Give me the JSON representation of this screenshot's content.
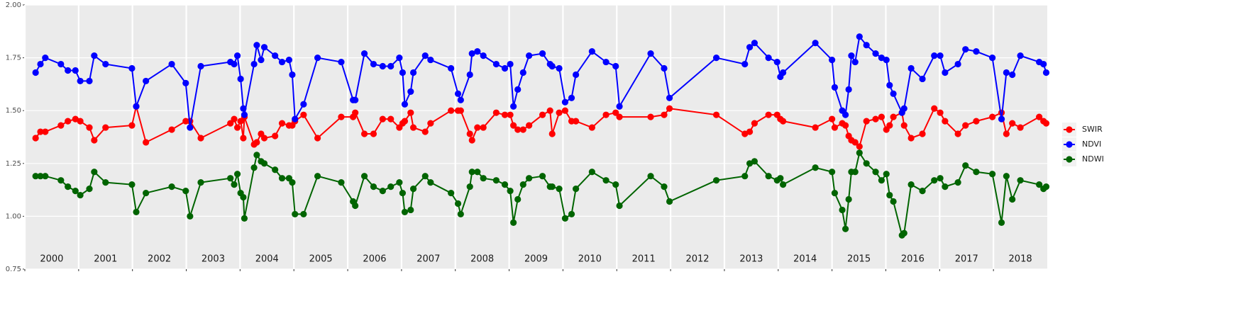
{
  "chart_data": {
    "type": "line",
    "x": [
      2000.2,
      2000.29,
      2000.38,
      2000.67,
      2000.8,
      2000.94,
      2001.03,
      2001.2,
      2001.29,
      2001.5,
      2001.99,
      2002.07,
      2002.25,
      2002.73,
      2002.99,
      2003.07,
      2003.27,
      2003.82,
      2003.89,
      2003.95,
      2004.01,
      2004.06,
      2004.08,
      2004.26,
      2004.31,
      2004.39,
      2004.45,
      2004.65,
      2004.78,
      2004.91,
      2004.97,
      2005.02,
      2005.18,
      2005.44,
      2005.88,
      2006.1,
      2006.14,
      2006.31,
      2006.48,
      2006.65,
      2006.8,
      2006.96,
      2007.02,
      2007.06,
      2007.17,
      2007.22,
      2007.44,
      2007.54,
      2007.92,
      2008.05,
      2008.1,
      2008.27,
      2008.31,
      2008.41,
      2008.52,
      2008.76,
      2008.92,
      2009.02,
      2009.08,
      2009.16,
      2009.26,
      2009.37,
      2009.62,
      2009.76,
      2009.8,
      2009.93,
      2010.04,
      2010.16,
      2010.24,
      2010.54,
      2010.8,
      2010.98,
      2011.05,
      2011.63,
      2011.88,
      2011.98,
      2012.85,
      2013.38,
      2013.47,
      2013.56,
      2013.82,
      2013.98,
      2014.04,
      2014.09,
      2014.69,
      2015.0,
      2015.05,
      2015.19,
      2015.25,
      2015.31,
      2015.36,
      2015.43,
      2015.51,
      2015.64,
      2015.81,
      2015.92,
      2016.01,
      2016.07,
      2016.14,
      2016.3,
      2016.34,
      2016.47,
      2016.68,
      2016.9,
      2017.01,
      2017.1,
      2017.34,
      2017.48,
      2017.68,
      2017.98,
      2018.15,
      2018.24,
      2018.35,
      2018.5,
      2018.85,
      2018.93,
      2018.98
    ],
    "series": [
      {
        "name": "SWIR",
        "color": "#ff0000",
        "values": [
          1.37,
          1.4,
          1.4,
          1.43,
          1.45,
          1.46,
          1.45,
          1.42,
          1.36,
          1.42,
          1.43,
          1.52,
          1.35,
          1.41,
          1.45,
          1.45,
          1.37,
          1.44,
          1.46,
          1.42,
          1.45,
          1.37,
          1.47,
          1.34,
          1.35,
          1.39,
          1.37,
          1.38,
          1.44,
          1.43,
          1.43,
          1.45,
          1.48,
          1.37,
          1.47,
          1.47,
          1.49,
          1.39,
          1.39,
          1.46,
          1.46,
          1.42,
          1.44,
          1.45,
          1.49,
          1.42,
          1.4,
          1.44,
          1.5,
          1.5,
          1.5,
          1.39,
          1.36,
          1.42,
          1.42,
          1.49,
          1.48,
          1.48,
          1.43,
          1.41,
          1.41,
          1.43,
          1.48,
          1.5,
          1.39,
          1.49,
          1.5,
          1.45,
          1.45,
          1.42,
          1.48,
          1.49,
          1.47,
          1.47,
          1.48,
          1.51,
          1.48,
          1.39,
          1.4,
          1.44,
          1.48,
          1.48,
          1.46,
          1.45,
          1.42,
          1.46,
          1.42,
          1.44,
          1.43,
          1.38,
          1.36,
          1.35,
          1.33,
          1.45,
          1.46,
          1.47,
          1.41,
          1.43,
          1.47,
          1.49,
          1.43,
          1.37,
          1.39,
          1.51,
          1.49,
          1.45,
          1.39,
          1.43,
          1.45,
          1.47,
          1.49,
          1.39,
          1.44,
          1.42,
          1.47,
          1.45,
          1.44
        ]
      },
      {
        "name": "NDVI",
        "color": "#0000ff",
        "values": [
          1.68,
          1.72,
          1.75,
          1.72,
          1.69,
          1.69,
          1.64,
          1.64,
          1.76,
          1.72,
          1.7,
          1.52,
          1.64,
          1.72,
          1.63,
          1.42,
          1.71,
          1.73,
          1.72,
          1.76,
          1.65,
          1.51,
          1.48,
          1.72,
          1.81,
          1.74,
          1.8,
          1.76,
          1.73,
          1.74,
          1.67,
          1.46,
          1.53,
          1.75,
          1.73,
          1.55,
          1.55,
          1.77,
          1.72,
          1.71,
          1.71,
          1.75,
          1.68,
          1.53,
          1.59,
          1.68,
          1.76,
          1.74,
          1.7,
          1.58,
          1.55,
          1.67,
          1.77,
          1.78,
          1.76,
          1.72,
          1.7,
          1.72,
          1.52,
          1.6,
          1.68,
          1.76,
          1.77,
          1.72,
          1.71,
          1.7,
          1.54,
          1.56,
          1.67,
          1.78,
          1.73,
          1.71,
          1.52,
          1.77,
          1.7,
          1.56,
          1.75,
          1.72,
          1.8,
          1.82,
          1.75,
          1.73,
          1.66,
          1.68,
          1.82,
          1.74,
          1.61,
          1.5,
          1.48,
          1.6,
          1.76,
          1.73,
          1.85,
          1.81,
          1.77,
          1.75,
          1.74,
          1.62,
          1.58,
          1.49,
          1.51,
          1.7,
          1.65,
          1.76,
          1.76,
          1.68,
          1.72,
          1.79,
          1.78,
          1.75,
          1.46,
          1.68,
          1.67,
          1.76,
          1.73,
          1.72,
          1.68
        ]
      },
      {
        "name": "NDWI",
        "color": "#006400",
        "values": [
          1.19,
          1.19,
          1.19,
          1.17,
          1.14,
          1.12,
          1.1,
          1.13,
          1.21,
          1.16,
          1.15,
          1.02,
          1.11,
          1.14,
          1.12,
          1.0,
          1.16,
          1.18,
          1.15,
          1.2,
          1.11,
          1.09,
          0.99,
          1.23,
          1.29,
          1.26,
          1.25,
          1.22,
          1.18,
          1.18,
          1.16,
          1.01,
          1.01,
          1.19,
          1.16,
          1.07,
          1.05,
          1.19,
          1.14,
          1.12,
          1.14,
          1.16,
          1.11,
          1.02,
          1.03,
          1.13,
          1.19,
          1.16,
          1.11,
          1.06,
          1.01,
          1.14,
          1.21,
          1.21,
          1.18,
          1.17,
          1.15,
          1.12,
          0.97,
          1.08,
          1.15,
          1.18,
          1.19,
          1.14,
          1.14,
          1.13,
          0.99,
          1.01,
          1.13,
          1.21,
          1.17,
          1.15,
          1.05,
          1.19,
          1.14,
          1.07,
          1.17,
          1.19,
          1.25,
          1.26,
          1.19,
          1.17,
          1.18,
          1.15,
          1.23,
          1.21,
          1.11,
          1.03,
          0.94,
          1.08,
          1.21,
          1.21,
          1.3,
          1.25,
          1.21,
          1.17,
          1.2,
          1.1,
          1.07,
          0.91,
          0.92,
          1.15,
          1.12,
          1.17,
          1.18,
          1.14,
          1.16,
          1.24,
          1.21,
          1.2,
          0.97,
          1.19,
          1.08,
          1.17,
          1.15,
          1.13,
          1.14
        ]
      }
    ],
    "xlim": [
      2000,
      2019
    ],
    "xticks": [
      2000,
      2001,
      2002,
      2003,
      2004,
      2005,
      2006,
      2007,
      2008,
      2009,
      2010,
      2011,
      2012,
      2013,
      2014,
      2015,
      2016,
      2017,
      2018
    ],
    "ylim": [
      0.75,
      2.0
    ],
    "yticks": [
      {
        "value": 0.75,
        "label": "0.75"
      },
      {
        "value": 1.0,
        "label": "1.00"
      },
      {
        "value": 1.25,
        "label": "1.25"
      },
      {
        "value": 1.5,
        "label": "1.50"
      },
      {
        "value": 1.75,
        "label": "1.75"
      },
      {
        "value": 2.0,
        "label": "2.00"
      }
    ],
    "grid": true,
    "legend": "right"
  }
}
